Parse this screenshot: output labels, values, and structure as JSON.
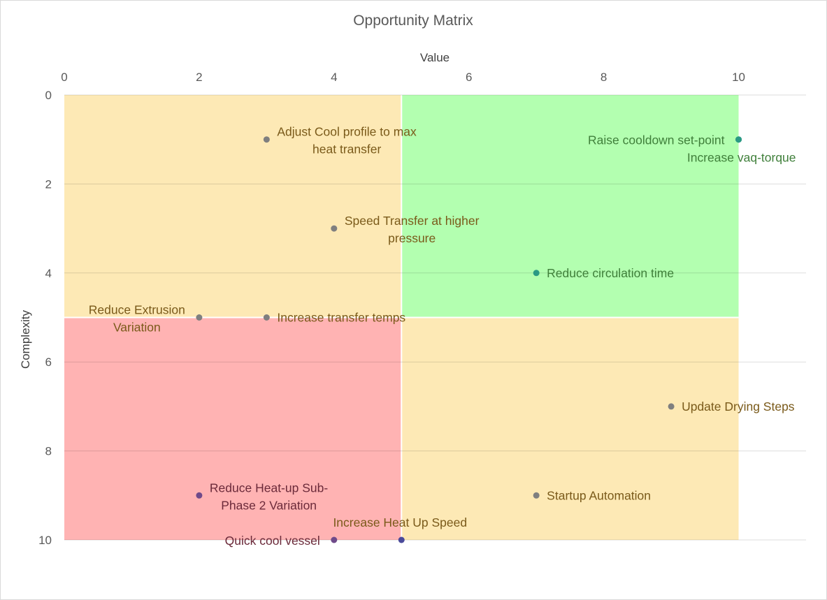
{
  "chart_data": {
    "type": "scatter",
    "title": "Opportunity Matrix",
    "xlabel": "Value",
    "ylabel": "Complexity",
    "xlim": [
      0,
      11
    ],
    "ylim": [
      0,
      10
    ],
    "y_reversed": true,
    "x_ticks": [
      "0",
      "2",
      "4",
      "6",
      "8",
      "10"
    ],
    "y_ticks": [
      "0",
      "2",
      "4",
      "6",
      "8",
      "10"
    ],
    "x_axis_position": "top",
    "grid": true,
    "legend": "none",
    "quadrants": [
      {
        "x": [
          0,
          5
        ],
        "y": [
          0,
          5
        ],
        "color": "#fde9b5"
      },
      {
        "x": [
          5,
          10
        ],
        "y": [
          0,
          5
        ],
        "color": "#b3ffb0"
      },
      {
        "x": [
          0,
          5
        ],
        "y": [
          5,
          10
        ],
        "color": "#ffb3b3"
      },
      {
        "x": [
          5,
          10
        ],
        "y": [
          5,
          10
        ],
        "color": "#fde9b5"
      }
    ],
    "points": [
      {
        "x": 3,
        "y": 1,
        "label": [
          "Adjust Cool profile to max",
          "heat transfer"
        ],
        "marker_color": "#7f7f7f",
        "label_color": "#7a5a1a",
        "label_pos": "right"
      },
      {
        "x": 10,
        "y": 1,
        "label": [
          "Raise cooldown set-point"
        ],
        "marker_color": "#2a9a84",
        "label_color": "#3f7f3a",
        "label_pos": "left"
      },
      {
        "x": 10,
        "y": 1,
        "label": [
          "Increase vaq-torque"
        ],
        "marker_color": "#2a9a84",
        "label_color": "#3f7f3a",
        "label_pos": "below-left"
      },
      {
        "x": 4,
        "y": 3,
        "label": [
          "Speed Transfer at higher",
          "pressure"
        ],
        "marker_color": "#7f7f7f",
        "label_color": "#7a5a1a",
        "label_pos": "right"
      },
      {
        "x": 7,
        "y": 4,
        "label": [
          "Reduce circulation time"
        ],
        "marker_color": "#2a9a84",
        "label_color": "#3f7f3a",
        "label_pos": "right"
      },
      {
        "x": 2,
        "y": 5,
        "label": [
          "Reduce Extrusion",
          "Variation"
        ],
        "marker_color": "#7f7f7f",
        "label_color": "#7a5a1a",
        "label_pos": "left"
      },
      {
        "x": 3,
        "y": 5,
        "label": [
          "Increase transfer temps"
        ],
        "marker_color": "#7f7f7f",
        "label_color": "#7a5a1a",
        "label_pos": "right"
      },
      {
        "x": 9,
        "y": 7,
        "label": [
          "Update Drying Steps"
        ],
        "marker_color": "#7f7f7f",
        "label_color": "#7a5a1a",
        "label_pos": "right"
      },
      {
        "x": 2,
        "y": 9,
        "label": [
          "Reduce Heat-up Sub-",
          "Phase 2 Variation"
        ],
        "marker_color": "#6f4a8a",
        "label_color": "#6b2a3a",
        "label_pos": "right"
      },
      {
        "x": 7,
        "y": 9,
        "label": [
          "Startup Automation"
        ],
        "marker_color": "#7f7f7f",
        "label_color": "#7a5a1a",
        "label_pos": "right"
      },
      {
        "x": 4,
        "y": 10,
        "label": [
          "Quick cool vessel"
        ],
        "marker_color": "#6f4a8a",
        "label_color": "#6b2a3a",
        "label_pos": "left"
      },
      {
        "x": 5,
        "y": 10,
        "label": [
          "Increase Heat Up Speed"
        ],
        "marker_color": "#4a4a9a",
        "label_color": "#7a5a1a",
        "label_pos": "above"
      }
    ]
  }
}
